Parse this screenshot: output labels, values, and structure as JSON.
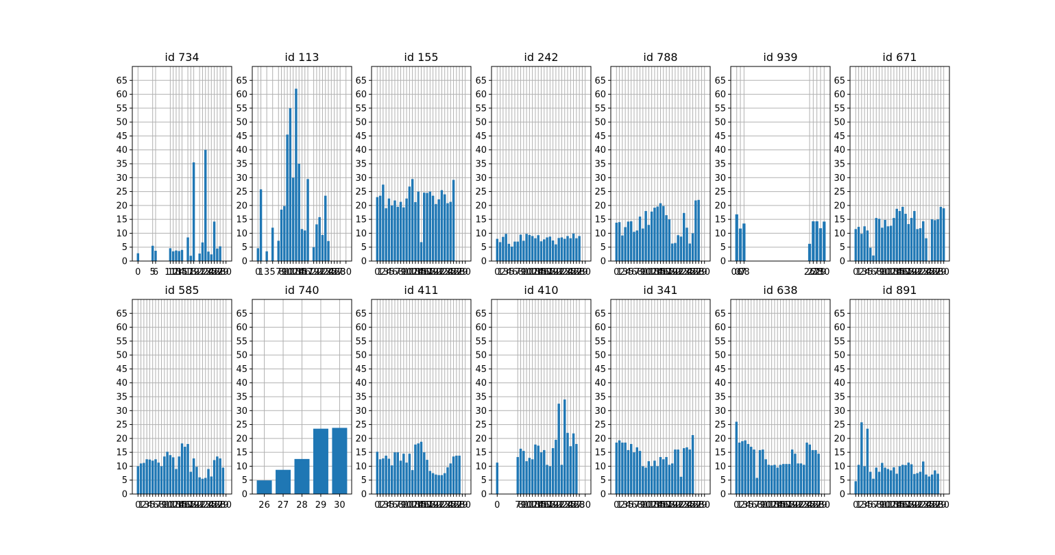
{
  "chart_data": [
    {
      "type": "bar",
      "title": "id 734",
      "ylim": [
        0,
        70
      ],
      "yticks": [
        0,
        5,
        10,
        15,
        20,
        25,
        30,
        35,
        40,
        45,
        50,
        55,
        60,
        65
      ],
      "grid": true,
      "categories": [
        "0",
        "5",
        "6",
        "11",
        "12",
        "13",
        "14",
        "15",
        "17",
        "18",
        "19",
        "21",
        "22",
        "23",
        "24",
        "25",
        "26",
        "27",
        "28",
        "29",
        "30"
      ],
      "x": [
        0,
        5,
        6,
        11,
        12,
        13,
        14,
        15,
        17,
        18,
        19,
        21,
        22,
        23,
        24,
        25,
        26,
        27,
        28,
        29,
        30
      ],
      "values": [
        2.8,
        5.5,
        3.7,
        4.6,
        3.5,
        3.8,
        3.6,
        4.0,
        8.5,
        1.9,
        35.5,
        2.7,
        6.7,
        40.0,
        3.4,
        2.4,
        14.2,
        4.5,
        5.3,
        0,
        0
      ]
    },
    {
      "type": "bar",
      "title": "id 113",
      "ylim": [
        0,
        70
      ],
      "yticks": [
        0,
        5,
        10,
        15,
        20,
        25,
        30,
        35,
        40,
        45,
        50,
        55,
        60,
        65
      ],
      "grid": true,
      "categories": [
        "0",
        "1",
        "3",
        "5",
        "7",
        "8",
        "9",
        "10",
        "11",
        "12",
        "13",
        "14",
        "15",
        "16",
        "17",
        "19",
        "20",
        "21",
        "22",
        "23",
        "24",
        "25",
        "26",
        "27",
        "28",
        "30"
      ],
      "x": [
        0,
        1,
        3,
        5,
        7,
        8,
        9,
        10,
        11,
        12,
        13,
        14,
        15,
        16,
        17,
        19,
        20,
        21,
        22,
        23,
        24,
        25,
        26,
        27,
        28,
        30
      ],
      "values": [
        4.6,
        25.8,
        3.5,
        12.0,
        7.3,
        18.5,
        19.8,
        45.5,
        55.0,
        30.0,
        62.0,
        35.0,
        11.5,
        11.0,
        29.5,
        5.0,
        13.2,
        15.8,
        9.4,
        23.5,
        7.2,
        0,
        0,
        0,
        0,
        0
      ]
    },
    {
      "type": "bar",
      "title": "id 155",
      "ylim": [
        0,
        70
      ],
      "yticks": [
        0,
        5,
        10,
        15,
        20,
        25,
        30,
        35,
        40,
        45,
        50,
        55,
        60,
        65
      ],
      "grid": true,
      "x": [
        0,
        1,
        2,
        3,
        4,
        5,
        6,
        7,
        8,
        9,
        10,
        11,
        12,
        13,
        14,
        15,
        16,
        17,
        18,
        19,
        20,
        21,
        22,
        23,
        24,
        25,
        26,
        27,
        28,
        29,
        30
      ],
      "categories": [
        "0",
        "1",
        "2",
        "3",
        "4",
        "5",
        "6",
        "7",
        "8",
        "9",
        "10",
        "11",
        "12",
        "13",
        "14",
        "15",
        "16",
        "17",
        "18",
        "19",
        "20",
        "21",
        "22",
        "23",
        "24",
        "25",
        "26",
        "27",
        "28",
        "29",
        "30"
      ],
      "values": [
        23.0,
        23.5,
        27.5,
        19.0,
        22.5,
        20.0,
        21.8,
        19.5,
        21.3,
        19.3,
        22.5,
        26.8,
        29.5,
        21.2,
        25.0,
        6.8,
        24.6,
        24.5,
        25.0,
        23.5,
        20.5,
        22.2,
        25.5,
        24.0,
        20.8,
        21.3,
        29.2,
        0,
        0,
        0,
        0
      ]
    },
    {
      "type": "bar",
      "title": "id 242",
      "ylim": [
        0,
        70
      ],
      "yticks": [
        0,
        5,
        10,
        15,
        20,
        25,
        30,
        35,
        40,
        45,
        50,
        55,
        60,
        65
      ],
      "grid": true,
      "x": [
        0,
        1,
        2,
        3,
        4,
        5,
        6,
        7,
        8,
        9,
        10,
        11,
        12,
        13,
        14,
        15,
        16,
        17,
        18,
        19,
        20,
        21,
        22,
        23,
        24,
        25,
        26,
        27,
        28,
        29,
        30
      ],
      "categories": [
        "0",
        "1",
        "2",
        "3",
        "4",
        "5",
        "6",
        "7",
        "8",
        "9",
        "10",
        "11",
        "12",
        "13",
        "14",
        "15",
        "16",
        "17",
        "18",
        "19",
        "20",
        "21",
        "22",
        "23",
        "24",
        "25",
        "26",
        "27",
        "28",
        "29",
        "30"
      ],
      "values": [
        8.0,
        6.8,
        8.7,
        9.8,
        6.2,
        5.2,
        7.0,
        7.0,
        9.5,
        7.3,
        9.8,
        9.4,
        9.0,
        8.2,
        9.3,
        7.1,
        7.8,
        8.5,
        8.8,
        7.4,
        6.0,
        8.3,
        8.5,
        8.0,
        9.0,
        8.2,
        9.9,
        8.2,
        9.0,
        0,
        0
      ]
    },
    {
      "type": "bar",
      "title": "id 788",
      "ylim": [
        0,
        70
      ],
      "yticks": [
        0,
        5,
        10,
        15,
        20,
        25,
        30,
        35,
        40,
        45,
        50,
        55,
        60,
        65
      ],
      "grid": true,
      "x": [
        0,
        1,
        2,
        3,
        4,
        5,
        6,
        7,
        8,
        9,
        10,
        11,
        12,
        13,
        14,
        15,
        16,
        17,
        18,
        19,
        20,
        21,
        22,
        23,
        24,
        25,
        26,
        27,
        28,
        29,
        30
      ],
      "categories": [
        "0",
        "1",
        "2",
        "3",
        "4",
        "5",
        "6",
        "7",
        "8",
        "9",
        "10",
        "11",
        "12",
        "13",
        "14",
        "15",
        "16",
        "17",
        "18",
        "19",
        "20",
        "21",
        "22",
        "23",
        "24",
        "25",
        "26",
        "27",
        "28",
        "29",
        "30"
      ],
      "values": [
        13.8,
        14.0,
        9.2,
        12.2,
        14.2,
        14.3,
        10.5,
        11.0,
        16.0,
        11.7,
        18.0,
        13.0,
        17.8,
        19.2,
        19.6,
        20.8,
        19.8,
        16.5,
        15.0,
        6.3,
        6.5,
        9.3,
        8.8,
        17.3,
        12.0,
        6.3,
        10.0,
        21.8,
        22.0,
        0,
        0
      ]
    },
    {
      "type": "bar",
      "title": "id 939",
      "ylim": [
        0,
        70
      ],
      "yticks": [
        0,
        5,
        10,
        15,
        20,
        25,
        30,
        35,
        40,
        45,
        50,
        55,
        60,
        65
      ],
      "grid": true,
      "categories": [
        "06",
        "07",
        "08",
        "26",
        "27",
        "28",
        "29",
        "30"
      ],
      "x": [
        6,
        7,
        8,
        26,
        27,
        28,
        29,
        30
      ],
      "values": [
        16.8,
        11.7,
        13.5,
        6.2,
        14.3,
        14.3,
        11.8,
        14.2
      ]
    },
    {
      "type": "bar",
      "title": "id 671",
      "ylim": [
        0,
        70
      ],
      "yticks": [
        0,
        5,
        10,
        15,
        20,
        25,
        30,
        35,
        40,
        45,
        50,
        55,
        60,
        65
      ],
      "grid": true,
      "x": [
        0,
        1,
        2,
        3,
        4,
        5,
        6,
        7,
        8,
        9,
        10,
        11,
        12,
        13,
        14,
        15,
        16,
        17,
        18,
        19,
        20,
        21,
        22,
        23,
        24,
        25,
        26,
        27,
        28,
        29,
        30
      ],
      "categories": [
        "0",
        "1",
        "2",
        "3",
        "4",
        "5",
        "6",
        "7",
        "8",
        "9",
        "10",
        "11",
        "12",
        "13",
        "14",
        "15",
        "16",
        "17",
        "18",
        "19",
        "20",
        "21",
        "22",
        "23",
        "24",
        "25",
        "26",
        "27",
        "28",
        "29",
        "30"
      ],
      "values": [
        11.5,
        12.3,
        9.8,
        12.5,
        11.0,
        4.8,
        2.0,
        15.5,
        15.2,
        12.0,
        14.8,
        12.5,
        12.7,
        15.5,
        18.8,
        18.0,
        19.5,
        17.0,
        13.3,
        15.5,
        18.0,
        11.5,
        11.8,
        14.3,
        8.2,
        0,
        15.0,
        14.7,
        15.0,
        19.5,
        19.0
      ]
    },
    {
      "type": "bar",
      "title": "id 585",
      "ylim": [
        0,
        70
      ],
      "yticks": [
        0,
        5,
        10,
        15,
        20,
        25,
        30,
        35,
        40,
        45,
        50,
        55,
        60,
        65
      ],
      "grid": true,
      "x": [
        0,
        1,
        2,
        3,
        4,
        5,
        6,
        7,
        8,
        9,
        10,
        11,
        12,
        13,
        14,
        15,
        16,
        17,
        18,
        19,
        20,
        21,
        22,
        23,
        24,
        25,
        26,
        27,
        28,
        29,
        30
      ],
      "categories": [
        "0",
        "1",
        "2",
        "3",
        "4",
        "5",
        "6",
        "7",
        "8",
        "9",
        "10",
        "11",
        "12",
        "13",
        "14",
        "15",
        "16",
        "17",
        "18",
        "19",
        "20",
        "21",
        "22",
        "23",
        "24",
        "25",
        "26",
        "27",
        "28",
        "29",
        "30"
      ],
      "values": [
        10.0,
        11.0,
        11.2,
        12.5,
        12.4,
        12.0,
        12.5,
        11.3,
        10.0,
        13.5,
        15.2,
        14.0,
        13.2,
        9.0,
        13.5,
        18.2,
        17.0,
        18.0,
        8.0,
        12.8,
        9.8,
        6.0,
        5.5,
        5.8,
        9.0,
        6.3,
        12.2,
        13.5,
        12.8,
        9.5,
        0
      ]
    },
    {
      "type": "bar",
      "title": "id 740",
      "ylim": [
        0,
        70
      ],
      "yticks": [
        0,
        5,
        10,
        15,
        20,
        25,
        30,
        35,
        40,
        45,
        50,
        55,
        60,
        65
      ],
      "grid": true,
      "categories": [
        "26",
        "27",
        "28",
        "29",
        "30"
      ],
      "x": [
        26,
        27,
        28,
        29,
        30
      ],
      "values": [
        4.9,
        8.7,
        12.6,
        23.5,
        23.8
      ]
    },
    {
      "type": "bar",
      "title": "id 411",
      "ylim": [
        0,
        70
      ],
      "yticks": [
        0,
        5,
        10,
        15,
        20,
        25,
        30,
        35,
        40,
        45,
        50,
        55,
        60,
        65
      ],
      "grid": true,
      "x": [
        0,
        1,
        2,
        3,
        4,
        5,
        6,
        7,
        8,
        9,
        10,
        11,
        12,
        13,
        14,
        15,
        16,
        17,
        18,
        19,
        20,
        21,
        22,
        23,
        24,
        25,
        26,
        27,
        28,
        29,
        30
      ],
      "categories": [
        "0",
        "1",
        "2",
        "3",
        "4",
        "5",
        "6",
        "7",
        "8",
        "9",
        "10",
        "11",
        "12",
        "13",
        "14",
        "15",
        "16",
        "17",
        "18",
        "19",
        "20",
        "21",
        "22",
        "23",
        "24",
        "25",
        "26",
        "27",
        "28",
        "29",
        "30"
      ],
      "values": [
        15.2,
        12.5,
        12.8,
        13.8,
        12.7,
        10.3,
        15.0,
        15.0,
        12.0,
        14.5,
        11.3,
        14.5,
        8.6,
        17.8,
        18.2,
        18.8,
        15.0,
        12.3,
        8.3,
        7.5,
        7.0,
        6.8,
        6.8,
        7.5,
        9.6,
        11.0,
        13.5,
        13.8,
        13.8,
        0,
        0
      ]
    },
    {
      "type": "bar",
      "title": "id 410",
      "ylim": [
        0,
        70
      ],
      "yticks": [
        0,
        5,
        10,
        15,
        20,
        25,
        30,
        35,
        40,
        45,
        50,
        55,
        60,
        65
      ],
      "grid": true,
      "categories": [
        "0",
        "7",
        "8",
        "9",
        "10",
        "11",
        "12",
        "13",
        "14",
        "15",
        "16",
        "17",
        "18",
        "19",
        "20",
        "21",
        "22",
        "23",
        "24",
        "25",
        "26",
        "27",
        "28",
        "30"
      ],
      "x": [
        0,
        7,
        8,
        9,
        10,
        11,
        12,
        13,
        14,
        15,
        16,
        17,
        18,
        19,
        20,
        21,
        22,
        23,
        24,
        25,
        26,
        27,
        28,
        30
      ],
      "values": [
        11.3,
        13.3,
        16.3,
        15.5,
        11.8,
        13.0,
        12.5,
        17.8,
        17.4,
        15.0,
        15.8,
        10.5,
        10.0,
        16.5,
        19.5,
        32.5,
        10.5,
        34.0,
        22.0,
        17.2,
        21.8,
        18.0,
        0,
        0
      ]
    },
    {
      "type": "bar",
      "title": "id 341",
      "ylim": [
        0,
        70
      ],
      "yticks": [
        0,
        5,
        10,
        15,
        20,
        25,
        30,
        35,
        40,
        45,
        50,
        55,
        60,
        65
      ],
      "grid": true,
      "x": [
        0,
        1,
        2,
        3,
        4,
        5,
        6,
        7,
        8,
        9,
        10,
        11,
        12,
        13,
        14,
        15,
        16,
        17,
        18,
        19,
        20,
        21,
        22,
        23,
        24,
        25,
        26,
        27,
        28,
        29,
        30
      ],
      "categories": [
        "0",
        "1",
        "2",
        "3",
        "4",
        "5",
        "6",
        "7",
        "8",
        "9",
        "10",
        "11",
        "12",
        "13",
        "14",
        "15",
        "16",
        "17",
        "18",
        "19",
        "20",
        "21",
        "22",
        "23",
        "24",
        "25",
        "26",
        "27",
        "28",
        "29",
        "30"
      ],
      "values": [
        18.5,
        19.3,
        18.5,
        18.5,
        15.8,
        18.0,
        15.0,
        16.8,
        15.5,
        10.0,
        9.5,
        11.8,
        10.0,
        12.0,
        10.0,
        13.3,
        12.5,
        13.3,
        10.5,
        11.0,
        16.0,
        16.0,
        6.2,
        16.5,
        16.8,
        16.0,
        21.2,
        0,
        0,
        0,
        0
      ]
    },
    {
      "type": "bar",
      "title": "id 638",
      "ylim": [
        0,
        70
      ],
      "yticks": [
        0,
        5,
        10,
        15,
        20,
        25,
        30,
        35,
        40,
        45,
        50,
        55,
        60,
        65
      ],
      "grid": true,
      "x": [
        0,
        1,
        2,
        3,
        4,
        5,
        6,
        7,
        8,
        9,
        10,
        11,
        12,
        13,
        14,
        15,
        16,
        17,
        18,
        19,
        20,
        21,
        22,
        23,
        24,
        25,
        26,
        27,
        28,
        29,
        30
      ],
      "categories": [
        "0",
        "1",
        "2",
        "3",
        "4",
        "5",
        "6",
        "7",
        "8",
        "9",
        "10",
        "11",
        "12",
        "13",
        "14",
        "15",
        "16",
        "17",
        "18",
        "19",
        "20",
        "21",
        "22",
        "23",
        "24",
        "25",
        "26",
        "27",
        "28",
        "29",
        "30"
      ],
      "values": [
        26.0,
        18.5,
        19.0,
        19.3,
        18.0,
        17.0,
        16.0,
        5.8,
        15.8,
        16.0,
        12.5,
        10.5,
        10.3,
        10.5,
        9.5,
        10.5,
        10.8,
        10.8,
        10.8,
        16.0,
        14.5,
        11.0,
        11.0,
        10.5,
        18.5,
        17.8,
        15.8,
        15.8,
        14.5,
        0,
        0
      ]
    },
    {
      "type": "bar",
      "title": "id 891",
      "ylim": [
        0,
        70
      ],
      "yticks": [
        0,
        5,
        10,
        15,
        20,
        25,
        30,
        35,
        40,
        45,
        50,
        55,
        60,
        65
      ],
      "grid": true,
      "x": [
        0,
        1,
        2,
        3,
        4,
        5,
        6,
        7,
        8,
        9,
        10,
        11,
        12,
        13,
        14,
        15,
        16,
        17,
        18,
        19,
        20,
        21,
        22,
        23,
        24,
        25,
        26,
        27,
        28,
        29,
        30
      ],
      "categories": [
        "0",
        "1",
        "2",
        "3",
        "4",
        "5",
        "6",
        "7",
        "8",
        "9",
        "10",
        "11",
        "12",
        "13",
        "14",
        "15",
        "16",
        "17",
        "18",
        "19",
        "20",
        "21",
        "22",
        "23",
        "24",
        "25",
        "26",
        "27",
        "28",
        "29",
        "30"
      ],
      "values": [
        4.6,
        10.5,
        25.8,
        10.0,
        23.5,
        8.0,
        5.5,
        9.5,
        8.0,
        11.2,
        9.5,
        9.0,
        8.5,
        9.6,
        7.3,
        10.0,
        10.5,
        10.4,
        11.3,
        10.7,
        7.2,
        7.5,
        8.0,
        11.7,
        7.0,
        6.3,
        7.0,
        8.5,
        7.3,
        0,
        0
      ]
    }
  ]
}
